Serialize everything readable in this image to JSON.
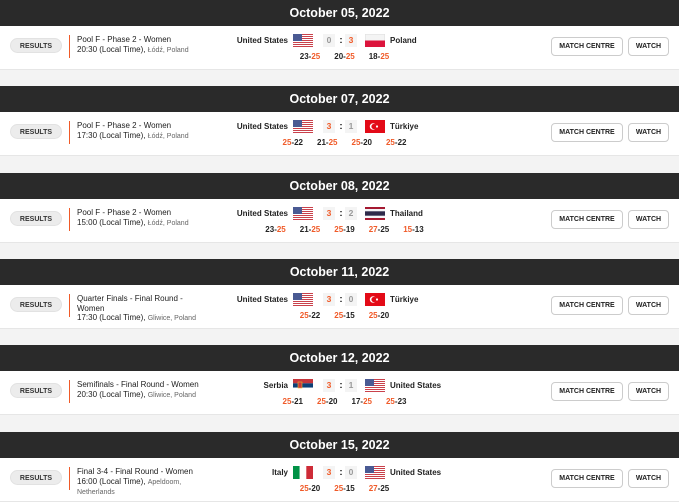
{
  "labels": {
    "results": "RESULTS",
    "match_centre": "MATCH CENTRE",
    "watch": "WATCH"
  },
  "colors": {
    "accent": "#f05a28",
    "header_bg": "#2a2a2a"
  },
  "matches": [
    {
      "date": "October 05, 2022",
      "phase": "Pool F - Phase 2 - Women",
      "time": "20:30 (Local Time),",
      "location": "Łódź, Poland",
      "home": "United States",
      "home_flag": "us",
      "away": "Poland",
      "away_flag": "pl",
      "home_score": "0",
      "away_score": "3",
      "sets": [
        [
          23,
          25
        ],
        [
          20,
          25
        ],
        [
          18,
          25
        ]
      ]
    },
    {
      "date": "October 07, 2022",
      "phase": "Pool F - Phase 2 - Women",
      "time": "17:30 (Local Time),",
      "location": "Łódź, Poland",
      "home": "United States",
      "home_flag": "us",
      "away": "Türkiye",
      "away_flag": "tr",
      "home_score": "3",
      "away_score": "1",
      "sets": [
        [
          25,
          22
        ],
        [
          21,
          25
        ],
        [
          25,
          20
        ],
        [
          25,
          22
        ]
      ]
    },
    {
      "date": "October 08, 2022",
      "phase": "Pool F - Phase 2 - Women",
      "time": "15:00 (Local Time),",
      "location": "Łódź, Poland",
      "home": "United States",
      "home_flag": "us",
      "away": "Thailand",
      "away_flag": "th",
      "home_score": "3",
      "away_score": "2",
      "sets": [
        [
          23,
          25
        ],
        [
          21,
          25
        ],
        [
          25,
          19
        ],
        [
          27,
          25
        ],
        [
          15,
          13
        ]
      ]
    },
    {
      "date": "October 11, 2022",
      "phase": "Quarter Finals - Final Round - Women",
      "time": "17:30 (Local Time),",
      "location": "Gliwice, Poland",
      "home": "United States",
      "home_flag": "us",
      "away": "Türkiye",
      "away_flag": "tr",
      "home_score": "3",
      "away_score": "0",
      "sets": [
        [
          25,
          22
        ],
        [
          25,
          15
        ],
        [
          25,
          20
        ]
      ]
    },
    {
      "date": "October 12, 2022",
      "phase": "Semifinals - Final Round - Women",
      "time": "20:30 (Local Time),",
      "location": "Gliwice, Poland",
      "home": "Serbia",
      "home_flag": "rs",
      "away": "United States",
      "away_flag": "us",
      "home_score": "3",
      "away_score": "1",
      "sets": [
        [
          25,
          21
        ],
        [
          25,
          20
        ],
        [
          17,
          25
        ],
        [
          25,
          23
        ]
      ]
    },
    {
      "date": "October 15, 2022",
      "phase": "Final 3-4 - Final Round - Women",
      "time": "16:00 (Local Time),",
      "location": "Apeldoom, Netherlands",
      "home": "Italy",
      "home_flag": "it",
      "away": "United States",
      "away_flag": "us",
      "home_score": "3",
      "away_score": "0",
      "sets": [
        [
          25,
          20
        ],
        [
          25,
          15
        ],
        [
          27,
          25
        ]
      ]
    }
  ]
}
